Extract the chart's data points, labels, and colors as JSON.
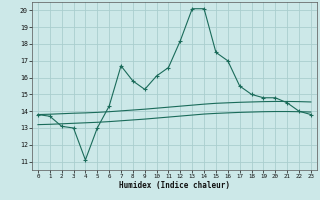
{
  "x": [
    0,
    1,
    2,
    3,
    4,
    5,
    6,
    7,
    8,
    9,
    10,
    11,
    12,
    13,
    14,
    15,
    16,
    17,
    18,
    19,
    20,
    21,
    22,
    23
  ],
  "jagged_y": [
    13.8,
    13.7,
    13.1,
    13.0,
    11.1,
    13.0,
    14.3,
    16.7,
    15.8,
    15.3,
    16.1,
    16.6,
    18.2,
    20.1,
    20.1,
    17.5,
    17.0,
    15.5,
    15.0,
    14.8,
    14.8,
    14.5,
    14.0,
    13.8
  ],
  "upper_smooth_y": [
    13.8,
    13.82,
    13.85,
    13.88,
    13.9,
    13.93,
    13.97,
    14.02,
    14.07,
    14.12,
    14.18,
    14.24,
    14.3,
    14.36,
    14.42,
    14.47,
    14.5,
    14.53,
    14.55,
    14.57,
    14.58,
    14.58,
    14.57,
    14.55
  ],
  "lower_smooth_y": [
    13.2,
    13.22,
    13.25,
    13.28,
    13.31,
    13.34,
    13.38,
    13.43,
    13.48,
    13.53,
    13.59,
    13.65,
    13.71,
    13.77,
    13.83,
    13.87,
    13.9,
    13.93,
    13.95,
    13.97,
    13.98,
    13.98,
    13.97,
    13.95
  ],
  "line_color": "#1a6b5a",
  "bg_color": "#cce8e8",
  "grid_color": "#aacece",
  "xlabel": "Humidex (Indice chaleur)",
  "ylim": [
    10.5,
    20.5
  ],
  "xlim": [
    -0.5,
    23.5
  ],
  "yticks": [
    11,
    12,
    13,
    14,
    15,
    16,
    17,
    18,
    19,
    20
  ],
  "xticks": [
    0,
    1,
    2,
    3,
    4,
    5,
    6,
    7,
    8,
    9,
    10,
    11,
    12,
    13,
    14,
    15,
    16,
    17,
    18,
    19,
    20,
    21,
    22,
    23
  ]
}
